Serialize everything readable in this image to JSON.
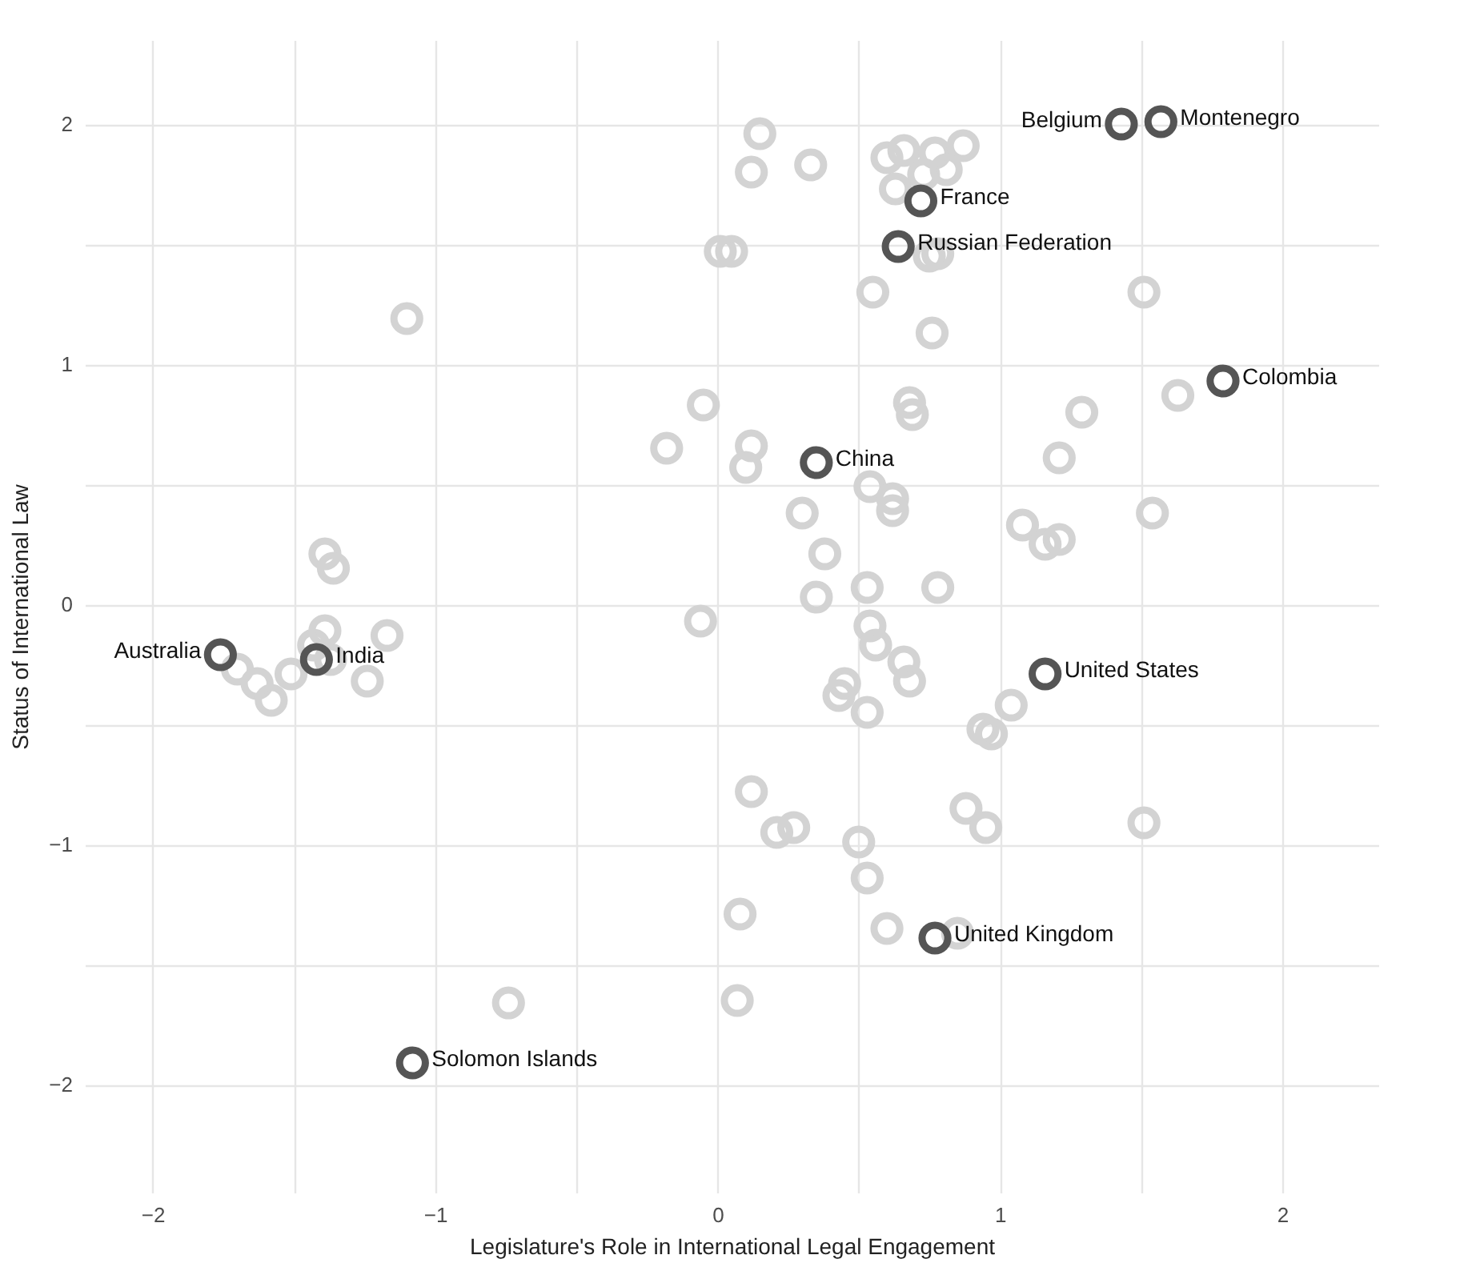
{
  "chart_data": {
    "type": "scatter",
    "xlabel": "Legislature's Role in International Legal Engagement",
    "ylabel": "Status of International Law",
    "xlim": [
      -2.24,
      2.34
    ],
    "ylim": [
      -2.45,
      2.35
    ],
    "xticks": [
      {
        "value": -2,
        "label": "−2"
      },
      {
        "value": -1.5,
        "label": null
      },
      {
        "value": -1,
        "label": "−1"
      },
      {
        "value": -0.5,
        "label": null
      },
      0,
      {
        "value": 0.5,
        "label": null
      },
      1,
      {
        "value": 1.5,
        "label": null
      },
      2
    ],
    "yticks": [
      {
        "value": -2,
        "label": "−2"
      },
      {
        "value": -1.5,
        "label": null
      },
      {
        "value": -1,
        "label": "−1"
      },
      {
        "value": -0.5,
        "label": null
      },
      0,
      {
        "value": 0.5,
        "label": null
      },
      1,
      {
        "value": 1.5,
        "label": null
      },
      2
    ],
    "grid": true,
    "marker": "circle",
    "series": [
      {
        "color": "#d3d3d3",
        "x": [
          0.15,
          0.12,
          0.33,
          0.6,
          0.66,
          0.77,
          0.87,
          0.73,
          0.81,
          0.63,
          0.01,
          0.05,
          0.75,
          0.78,
          0.55,
          0.76,
          1.51,
          -1.1,
          -0.05,
          0.68,
          0.69,
          1.29,
          1.63,
          -0.18,
          0.12,
          0.1,
          1.21,
          0.3,
          0.54,
          0.62,
          0.62,
          1.08,
          1.16,
          1.21,
          1.54,
          0.38,
          0.35,
          0.53,
          0.78,
          -0.06,
          0.54,
          0.56,
          0.66,
          0.68,
          0.45,
          0.43,
          0.53,
          1.04,
          0.94,
          0.97,
          0.12,
          0.21,
          0.27,
          0.5,
          0.53,
          0.08,
          0.07,
          -0.74,
          0.6,
          0.85,
          0.88,
          0.95,
          1.51,
          -1.39,
          -1.36,
          -1.17,
          -1.24,
          -1.7,
          -1.63,
          -1.58,
          -1.51,
          -1.43,
          -1.37,
          -1.39
        ],
        "values": [
          1.96,
          1.8,
          1.83,
          1.86,
          1.89,
          1.88,
          1.91,
          1.79,
          1.81,
          1.73,
          1.47,
          1.47,
          1.45,
          1.46,
          1.3,
          1.13,
          1.3,
          1.19,
          0.83,
          0.84,
          0.79,
          0.8,
          0.87,
          0.65,
          0.66,
          0.57,
          0.61,
          0.38,
          0.49,
          0.44,
          0.39,
          0.33,
          0.25,
          0.27,
          0.38,
          0.21,
          0.03,
          0.07,
          0.07,
          -0.07,
          -0.09,
          -0.17,
          -0.24,
          -0.32,
          -0.33,
          -0.38,
          -0.45,
          -0.42,
          -0.52,
          -0.54,
          -0.78,
          -0.95,
          -0.93,
          -0.99,
          -1.14,
          -1.29,
          -1.65,
          -1.66,
          -1.35,
          -1.37,
          -0.85,
          -0.93,
          -0.91,
          0.21,
          0.15,
          -0.13,
          -0.32,
          -0.27,
          -0.33,
          -0.4,
          -0.29,
          -0.17,
          -0.23,
          -0.11
        ]
      },
      {
        "color": "#555555",
        "x": [
          1.43,
          1.57,
          0.72,
          0.64,
          1.79,
          0.35,
          1.16,
          0.77,
          -1.76,
          -1.42,
          -1.08
        ],
        "values": [
          2.0,
          2.01,
          1.68,
          1.49,
          0.93,
          0.59,
          -0.29,
          -1.39,
          -0.21,
          -0.23,
          -1.91
        ]
      }
    ],
    "annotations": [
      {
        "text": "Belgium",
        "x": 1.43,
        "y": 2.0
      },
      {
        "text": "Montenegro",
        "x": 1.57,
        "y": 2.01
      },
      {
        "text": "France",
        "x": 0.72,
        "y": 1.68
      },
      {
        "text": "Russian Federation",
        "x": 0.64,
        "y": 1.49
      },
      {
        "text": "Colombia",
        "x": 1.79,
        "y": 0.93
      },
      {
        "text": "China",
        "x": 0.35,
        "y": 0.59
      },
      {
        "text": "United States",
        "x": 1.16,
        "y": -0.29
      },
      {
        "text": "United Kingdom",
        "x": 0.77,
        "y": -1.39
      },
      {
        "text": "Australia",
        "x": -1.76,
        "y": -0.21
      },
      {
        "text": "India",
        "x": -1.42,
        "y": -0.23
      },
      {
        "text": "Solomon Islands",
        "x": -1.08,
        "y": -1.91
      }
    ]
  }
}
